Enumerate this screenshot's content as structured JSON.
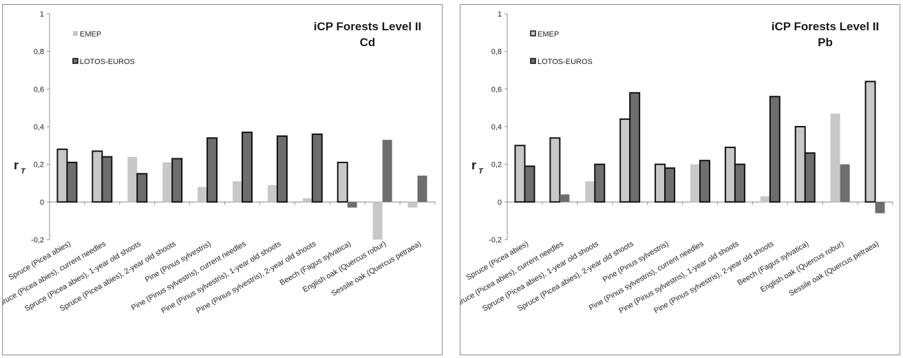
{
  "chart_data": [
    {
      "type": "bar",
      "title": "iCP Forests Level II",
      "subtitle": "Cd",
      "ylabel": "r",
      "ylabel_sub": "T",
      "ylim": [
        -0.2,
        1
      ],
      "yticks": [
        "-0,2",
        "0",
        "0,2",
        "0,4",
        "0,6",
        "0,8",
        "1"
      ],
      "legend_position": "top-left",
      "categories": [
        "Spruce (Picea abies)",
        "Spruce (Picea abies), current needles",
        "Spruce (Picea abies), 1-year old shoots",
        "Spruce (Picea abies), 2-year old shoots",
        "Pine (Pinus sylvestris)",
        "Pine (Pinus sylvestris), current needles",
        "Pine (Pinus sylvestris), 1-year old shoots",
        "Pine (Pinus sylvestris), 2-year old shoots",
        "Beech (Fagus sylvatica)",
        "English oak (Quercus robur)",
        "Sessile oak (Quercus petraea)"
      ],
      "series": [
        {
          "name": "EMEP",
          "color": "#c8c8c8",
          "values": [
            0.28,
            0.27,
            0.24,
            0.21,
            0.08,
            0.11,
            0.09,
            0.02,
            0.21,
            -0.2,
            -0.03
          ],
          "bold": [
            true,
            true,
            false,
            false,
            false,
            false,
            false,
            false,
            true,
            false,
            false
          ]
        },
        {
          "name": "LOTOS-EUROS",
          "color": "#6e6e6e",
          "values": [
            0.21,
            0.24,
            0.15,
            0.23,
            0.34,
            0.37,
            0.35,
            0.36,
            -0.03,
            0.33,
            0.14
          ],
          "bold": [
            true,
            true,
            true,
            true,
            true,
            true,
            true,
            true,
            false,
            false,
            false
          ]
        }
      ]
    },
    {
      "type": "bar",
      "title": "iCP Forests Level II",
      "subtitle": "Pb",
      "ylabel": "r",
      "ylabel_sub": "T",
      "ylim": [
        -0.2,
        1
      ],
      "yticks": [
        "-0,2",
        "0",
        "0,2",
        "0,4",
        "0,6",
        "0,8",
        "1"
      ],
      "legend_position": "top-left",
      "categories": [
        "Spruce (Picea abies)",
        "Spruce (Picea abies), current needles",
        "Spruce (Picea abies), 1-year old shoots",
        "Spruce (Picea abies), 2-year old shoots",
        "Pine (Pinus sylvestris)",
        "Pine (Pinus sylvestris), current needles",
        "Pine (Pinus sylvestris), 1-year old shoots",
        "Pine (Pinus sylvestris), 2-year old shoots",
        "Beech (Fagus sylvatica)",
        "English oak (Quercus robur)",
        "Sessile oak (Quercus petraea)"
      ],
      "series": [
        {
          "name": "EMEP",
          "color": "#c8c8c8",
          "values": [
            0.3,
            0.34,
            0.11,
            0.44,
            0.2,
            0.2,
            0.29,
            0.03,
            0.4,
            0.47,
            0.64
          ],
          "bold": [
            true,
            true,
            false,
            true,
            true,
            false,
            true,
            false,
            true,
            false,
            true
          ]
        },
        {
          "name": "LOTOS-EUROS",
          "color": "#6e6e6e",
          "values": [
            0.19,
            0.04,
            0.2,
            0.58,
            0.18,
            0.22,
            0.2,
            0.56,
            0.26,
            0.2,
            -0.06
          ],
          "bold": [
            true,
            false,
            true,
            true,
            true,
            true,
            true,
            true,
            true,
            false,
            false
          ]
        }
      ]
    }
  ]
}
